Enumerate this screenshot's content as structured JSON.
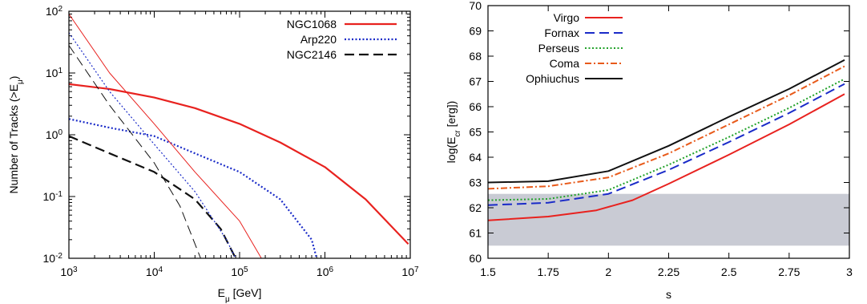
{
  "chart_data": [
    {
      "type": "line",
      "xscale": "log",
      "yscale": "log",
      "xlim": [
        1000,
        10000000
      ],
      "ylim": [
        0.01,
        100
      ],
      "xlabel": "E",
      "xlabel_sub": "μ",
      "xlabel_rest": " [GeV]",
      "ylabel": "Number of Tracks (>E",
      "ylabel_sub": "μ",
      "ylabel_rest": ")",
      "xticks": [
        {
          "v": 1000,
          "m": "10",
          "e": "3"
        },
        {
          "v": 10000,
          "m": "10",
          "e": "4"
        },
        {
          "v": 100000,
          "m": "10",
          "e": "5"
        },
        {
          "v": 1000000,
          "m": "10",
          "e": "6"
        },
        {
          "v": 10000000,
          "m": "10",
          "e": "7"
        }
      ],
      "yticks": [
        {
          "v": 0.01,
          "m": "10",
          "e": "-2"
        },
        {
          "v": 0.1,
          "m": "10",
          "e": "-1"
        },
        {
          "v": 1,
          "m": "10",
          "e": "0"
        },
        {
          "v": 10,
          "m": "10",
          "e": "1"
        },
        {
          "v": 100,
          "m": "10",
          "e": "2"
        }
      ],
      "legend_position": "top-right",
      "series": [
        {
          "name": "NGC1068",
          "color": "#e8221f",
          "dash": "solid",
          "width": 2.2,
          "legend": true,
          "points": [
            [
              1000,
              6.6
            ],
            [
              3000,
              5.5
            ],
            [
              10000,
              4.0
            ],
            [
              30000,
              2.7
            ],
            [
              100000,
              1.5
            ],
            [
              300000,
              0.75
            ],
            [
              1000000,
              0.3
            ],
            [
              3000000,
              0.09
            ],
            [
              9500000,
              0.017
            ]
          ]
        },
        {
          "name": "Arp220",
          "color": "#1a2bc8",
          "dash": "dotted",
          "width": 2.2,
          "legend": true,
          "points": [
            [
              1000,
              1.8
            ],
            [
              3000,
              1.3
            ],
            [
              10000,
              0.95
            ],
            [
              30000,
              0.5
            ],
            [
              100000,
              0.25
            ],
            [
              300000,
              0.09
            ],
            [
              700000,
              0.02
            ],
            [
              800000,
              0.01
            ]
          ]
        },
        {
          "name": "NGC2146",
          "color": "#111111",
          "dash": "dashed",
          "width": 2.2,
          "legend": true,
          "points": [
            [
              1000,
              0.95
            ],
            [
              3000,
              0.5
            ],
            [
              10000,
              0.25
            ],
            [
              30000,
              0.09
            ],
            [
              60000,
              0.03
            ],
            [
              90000,
              0.01
            ]
          ]
        },
        {
          "name": "",
          "color": "#e8221f",
          "dash": "solid",
          "width": 1.0,
          "legend": false,
          "points": [
            [
              1000,
              90
            ],
            [
              3000,
              10
            ],
            [
              10000,
              1.5
            ],
            [
              30000,
              0.25
            ],
            [
              100000,
              0.04
            ],
            [
              180000,
              0.01
            ]
          ]
        },
        {
          "name": "",
          "color": "#1a2bc8",
          "dash": "dotted",
          "width": 1.2,
          "legend": false,
          "points": [
            [
              1000,
              45
            ],
            [
              3000,
              5
            ],
            [
              10000,
              0.7
            ],
            [
              30000,
              0.12
            ],
            [
              70000,
              0.02
            ],
            [
              90000,
              0.01
            ]
          ]
        },
        {
          "name": "",
          "color": "#111111",
          "dash": "dashed",
          "width": 1.0,
          "legend": false,
          "points": [
            [
              1000,
              28
            ],
            [
              3000,
              3
            ],
            [
              10000,
              0.35
            ],
            [
              20000,
              0.07
            ],
            [
              35000,
              0.01
            ]
          ]
        }
      ]
    },
    {
      "type": "line",
      "xscale": "linear",
      "yscale": "linear",
      "xlim": [
        1.5,
        3
      ],
      "ylim": [
        60,
        70
      ],
      "xlabel": "s",
      "ylabel": "log(E",
      "ylabel_sub": "cr",
      "ylabel_rest": " [erg])",
      "xticks": [
        "1.5",
        "1.75",
        "2",
        "2.25",
        "2.5",
        "2.75",
        "3"
      ],
      "yticks": [
        "60",
        "61",
        "62",
        "63",
        "64",
        "65",
        "66",
        "67",
        "68",
        "69",
        "70"
      ],
      "legend_position": "top-left",
      "shaded_band": {
        "y_from": 60.5,
        "y_to": 62.55,
        "color": "#c9cbd4"
      },
      "series": [
        {
          "name": "Virgo",
          "color": "#e8221f",
          "dash": "solid",
          "points": [
            [
              1.5,
              61.5
            ],
            [
              1.75,
              61.65
            ],
            [
              1.95,
              61.9
            ],
            [
              2.1,
              62.3
            ],
            [
              2.25,
              62.95
            ],
            [
              2.5,
              64.1
            ],
            [
              2.75,
              65.3
            ],
            [
              2.98,
              66.5
            ]
          ]
        },
        {
          "name": "Fornax",
          "color": "#1a2bc8",
          "dash": "dashed",
          "points": [
            [
              1.5,
              62.1
            ],
            [
              1.75,
              62.2
            ],
            [
              2.0,
              62.55
            ],
            [
              2.25,
              63.5
            ],
            [
              2.5,
              64.6
            ],
            [
              2.75,
              65.75
            ],
            [
              2.98,
              66.9
            ]
          ]
        },
        {
          "name": "Perseus",
          "color": "#22a22a",
          "dash": "dotted",
          "points": [
            [
              1.5,
              62.3
            ],
            [
              1.75,
              62.35
            ],
            [
              2.0,
              62.7
            ],
            [
              2.25,
              63.7
            ],
            [
              2.5,
              64.8
            ],
            [
              2.75,
              65.95
            ],
            [
              2.98,
              67.1
            ]
          ]
        },
        {
          "name": "Coma",
          "color": "#e85a1a",
          "dash": "dashdot",
          "points": [
            [
              1.5,
              62.75
            ],
            [
              1.75,
              62.85
            ],
            [
              2.0,
              63.2
            ],
            [
              2.25,
              64.15
            ],
            [
              2.5,
              65.3
            ],
            [
              2.75,
              66.45
            ],
            [
              2.98,
              67.6
            ]
          ]
        },
        {
          "name": "Ophiuchus",
          "color": "#111111",
          "dash": "solid",
          "points": [
            [
              1.5,
              63.0
            ],
            [
              1.75,
              63.05
            ],
            [
              2.0,
              63.45
            ],
            [
              2.25,
              64.45
            ],
            [
              2.5,
              65.6
            ],
            [
              2.75,
              66.7
            ],
            [
              2.98,
              67.85
            ]
          ]
        }
      ]
    }
  ]
}
